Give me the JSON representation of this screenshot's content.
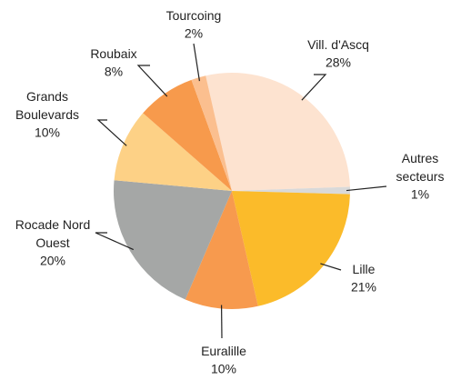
{
  "chart_data": {
    "type": "pie",
    "categories": [
      "Vill. d'Ascq",
      "Autres secteurs",
      "Lille",
      "Euralille",
      "Rocade Nord Ouest",
      "Grands Boulevards",
      "Roubaix",
      "Tourcoing"
    ],
    "values": [
      28,
      1,
      21,
      10,
      20,
      10,
      8,
      2
    ],
    "value_labels": [
      "28%",
      "1%",
      "21%",
      "10%",
      "20%",
      "10%",
      "8%",
      "2%"
    ],
    "colors": [
      "#fde3d0",
      "#d9d9d9",
      "#fbbb2a",
      "#f79a4e",
      "#a5a7a6",
      "#fdd186",
      "#f79a4c",
      "#fbbf8f"
    ]
  }
}
